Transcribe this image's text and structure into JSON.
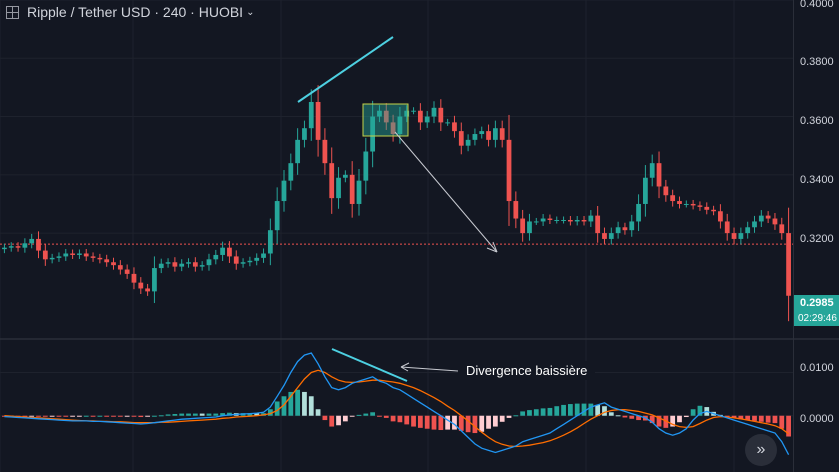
{
  "header": {
    "symbol": "Ripple / Tether USD",
    "interval": "240",
    "exchange": "HUOBI"
  },
  "price_axis": {
    "labels": [
      "0.4000",
      "0.3800",
      "0.3600",
      "0.3400",
      "0.3200"
    ],
    "current_price": "0.2985",
    "countdown": "02:29:46"
  },
  "macd_axis": {
    "labels": [
      "0.0100",
      "0.0000"
    ]
  },
  "annotation": {
    "text": "Divergence baissière"
  },
  "colors": {
    "background": "#131722",
    "up": "#26a69a",
    "down": "#ef5350",
    "macd_line": "#2196f3",
    "signal_line": "#ff6d00",
    "trendline": "#4dd0e1"
  },
  "chart_data": [
    {
      "type": "candlestick",
      "title": "Ripple / Tether USD · 240 · HUOBI",
      "ylim": [
        0.284,
        0.4
      ],
      "ticks": [
        0.32,
        0.34,
        0.36,
        0.38,
        0.4
      ],
      "reference_line": 0.3162,
      "closes": [
        0.315,
        0.3155,
        0.315,
        0.3165,
        0.318,
        0.314,
        0.311,
        0.3115,
        0.312,
        0.313,
        0.3125,
        0.313,
        0.312,
        0.3115,
        0.311,
        0.31,
        0.309,
        0.3075,
        0.306,
        0.303,
        0.301,
        0.3,
        0.308,
        0.3095,
        0.31,
        0.3085,
        0.3095,
        0.31,
        0.3085,
        0.309,
        0.311,
        0.3125,
        0.315,
        0.312,
        0.3095,
        0.31,
        0.3105,
        0.3115,
        0.313,
        0.321,
        0.331,
        0.338,
        0.344,
        0.352,
        0.356,
        0.365,
        0.352,
        0.344,
        0.332,
        0.339,
        0.34,
        0.33,
        0.338,
        0.348,
        0.36,
        0.362,
        0.358,
        0.354,
        0.36,
        0.362,
        0.362,
        0.358,
        0.36,
        0.363,
        0.358,
        0.358,
        0.355,
        0.35,
        0.352,
        0.354,
        0.355,
        0.352,
        0.356,
        0.352,
        0.331,
        0.325,
        0.32,
        0.324,
        0.324,
        0.325,
        0.3245,
        0.3245,
        0.3245,
        0.324,
        0.3245,
        0.324,
        0.326,
        0.32,
        0.318,
        0.32,
        0.322,
        0.321,
        0.324,
        0.33,
        0.339,
        0.344,
        0.336,
        0.333,
        0.331,
        0.33,
        0.33,
        0.3295,
        0.329,
        0.328,
        0.3275,
        0.324,
        0.32,
        0.318,
        0.32,
        0.322,
        0.324,
        0.326,
        0.325,
        0.323,
        0.32,
        0.2985
      ],
      "current": 0.2985
    },
    {
      "type": "macd",
      "ylim": [
        -0.013,
        0.0175
      ],
      "ticks": [
        0.0,
        0.01
      ],
      "macd": [
        -0.0002,
        -0.0003,
        -0.0004,
        -0.0005,
        -0.0006,
        -0.0007,
        -0.0008,
        -0.0009,
        -0.001,
        -0.0011,
        -0.0012,
        -0.0012,
        -0.0012,
        -0.0013,
        -0.0013,
        -0.0014,
        -0.0015,
        -0.0016,
        -0.0017,
        -0.0018,
        -0.0019,
        -0.0018,
        -0.0016,
        -0.0014,
        -0.0012,
        -0.001,
        -0.0008,
        -0.0007,
        -0.0006,
        -0.0005,
        -0.0004,
        -0.0003,
        0.0,
        0.0002,
        0.0003,
        0.0004,
        0.0005,
        0.0006,
        0.0008,
        0.002,
        0.0045,
        0.007,
        0.01,
        0.0125,
        0.014,
        0.0145,
        0.012,
        0.009,
        0.0065,
        0.006,
        0.0065,
        0.0075,
        0.008,
        0.0085,
        0.009,
        0.008,
        0.0075,
        0.0065,
        0.006,
        0.005,
        0.004,
        0.003,
        0.002,
        0.001,
        0.0,
        -0.001,
        -0.002,
        -0.0035,
        -0.005,
        -0.0065,
        -0.0075,
        -0.008,
        -0.0085,
        -0.008,
        -0.0075,
        -0.007,
        -0.006,
        -0.0055,
        -0.005,
        -0.0045,
        -0.004,
        -0.003,
        -0.002,
        -0.001,
        0.0,
        0.001,
        0.002,
        0.0025,
        0.003,
        0.002,
        0.0015,
        0.001,
        0.0005,
        0.0,
        -0.0005,
        -0.0015,
        -0.003,
        -0.004,
        -0.0045,
        -0.004,
        -0.003,
        -0.001,
        0.0005,
        0.001,
        0.0005,
        0.0,
        -0.0005,
        -0.001,
        -0.0015,
        -0.002,
        -0.0025,
        -0.003,
        -0.0035,
        -0.004,
        -0.006,
        -0.009
      ],
      "signal": [
        0.0,
        -0.0001,
        -0.0002,
        -0.0003,
        -0.0004,
        -0.0005,
        -0.0006,
        -0.0007,
        -0.0008,
        -0.0009,
        -0.001,
        -0.0011,
        -0.0012,
        -0.0012,
        -0.0013,
        -0.0013,
        -0.0014,
        -0.0014,
        -0.0015,
        -0.0016,
        -0.0016,
        -0.0016,
        -0.0016,
        -0.0015,
        -0.0015,
        -0.0014,
        -0.0013,
        -0.0012,
        -0.0011,
        -0.001,
        -0.0009,
        -0.0008,
        -0.0006,
        -0.0005,
        -0.0003,
        -0.0002,
        -0.0001,
        0.0,
        0.0002,
        0.0005,
        0.0012,
        0.0025,
        0.0045,
        0.0065,
        0.0085,
        0.01,
        0.0105,
        0.01,
        0.009,
        0.0082,
        0.0078,
        0.0077,
        0.0078,
        0.008,
        0.0082,
        0.0082,
        0.008,
        0.0078,
        0.0075,
        0.007,
        0.0065,
        0.0058,
        0.005,
        0.0042,
        0.0033,
        0.0022,
        0.0012,
        0.0,
        -0.0012,
        -0.0025,
        -0.0038,
        -0.005,
        -0.006,
        -0.0066,
        -0.007,
        -0.0071,
        -0.007,
        -0.0068,
        -0.0065,
        -0.0062,
        -0.0058,
        -0.0052,
        -0.0045,
        -0.0037,
        -0.0028,
        -0.0018,
        -0.0008,
        0.0,
        0.0008,
        0.0012,
        0.0014,
        0.0014,
        0.0012,
        0.001,
        0.0006,
        0.0002,
        -0.0005,
        -0.0012,
        -0.002,
        -0.0025,
        -0.0027,
        -0.0025,
        -0.0018,
        -0.001,
        -0.0004,
        -0.0002,
        -0.0003,
        -0.0005,
        -0.0007,
        -0.001,
        -0.0013,
        -0.0016,
        -0.0019,
        -0.0023,
        -0.003,
        -0.0042
      ]
    }
  ]
}
